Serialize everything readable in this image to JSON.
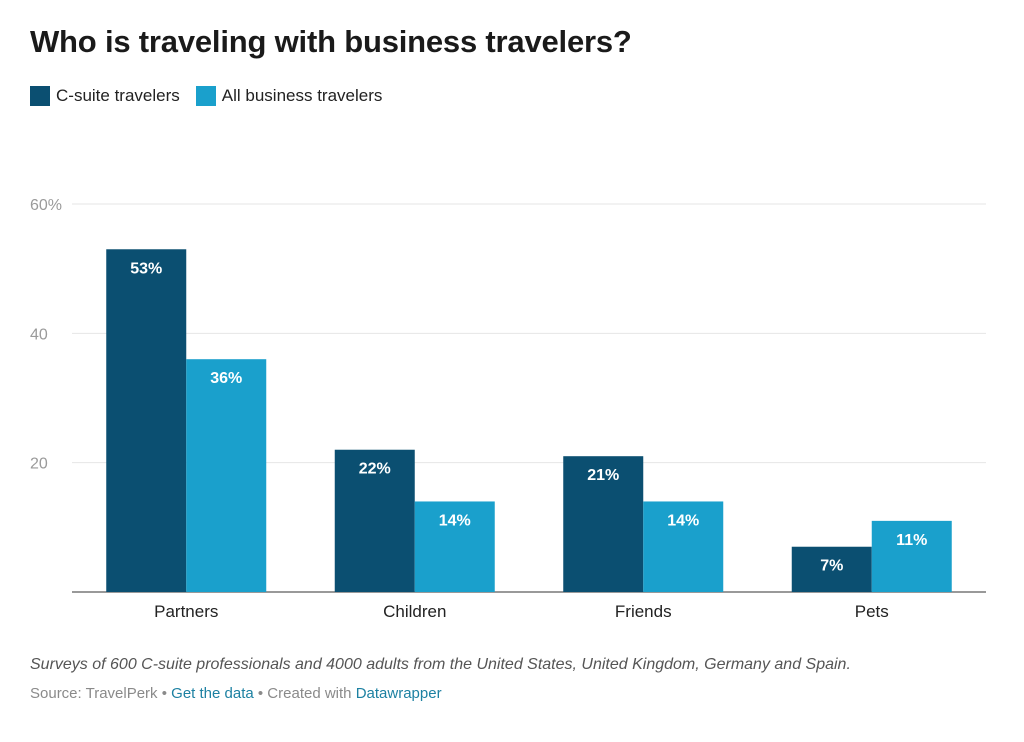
{
  "header": {
    "title": "Who is traveling with business travelers?"
  },
  "legend": [
    {
      "label": "C-suite travelers",
      "color": "#0b4f71"
    },
    {
      "label": "All business travelers",
      "color": "#1aa0cc"
    }
  ],
  "chart_data": {
    "type": "bar",
    "title": "Who is traveling with business travelers?",
    "categories": [
      "Partners",
      "Children",
      "Friends",
      "Pets"
    ],
    "series": [
      {
        "name": "C-suite travelers",
        "values": [
          53,
          22,
          21,
          7
        ],
        "labels": [
          "53%",
          "22%",
          "21%",
          "7%"
        ],
        "color": "#0b4f71"
      },
      {
        "name": "All business travelers",
        "values": [
          36,
          14,
          14,
          11
        ],
        "labels": [
          "36%",
          "14%",
          "14%",
          "11%"
        ],
        "color": "#1aa0cc"
      }
    ],
    "ylim": [
      0,
      60
    ],
    "yticks": [
      20,
      40,
      60
    ],
    "ytick_labels": [
      "20",
      "40",
      "60%"
    ],
    "xlabel": "",
    "ylabel": "",
    "grid": true,
    "legend_position": "top-left"
  },
  "notes": "Surveys of 600 C-suite professionals and 4000 adults from the United States, United Kingdom, Germany and Spain.",
  "footer": {
    "source_prefix": "Source: TravelPerk",
    "separator1": " • ",
    "get_data_link": "Get the data",
    "separator2": " • Created with ",
    "datawrapper_link": "Datawrapper"
  }
}
